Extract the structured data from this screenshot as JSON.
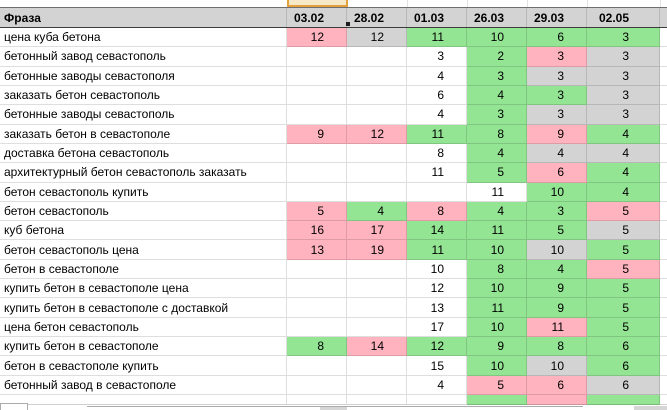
{
  "table": {
    "phrase_header": "Фраза",
    "date_columns": [
      "03.02",
      "28.02",
      "01.03",
      "26.03",
      "29.03",
      "02.05"
    ],
    "rows": [
      {
        "phrase": "цена куба бетона",
        "cells": [
          {
            "v": "12",
            "c": "pink"
          },
          {
            "v": "12",
            "c": "gray"
          },
          {
            "v": "11",
            "c": "green"
          },
          {
            "v": "10",
            "c": "green"
          },
          {
            "v": "6",
            "c": "green"
          },
          {
            "v": "3",
            "c": "green"
          }
        ]
      },
      {
        "phrase": "бетонный завод севастополь",
        "cells": [
          {
            "v": "",
            "c": "none"
          },
          {
            "v": "",
            "c": "none"
          },
          {
            "v": "3",
            "c": "white"
          },
          {
            "v": "2",
            "c": "green"
          },
          {
            "v": "3",
            "c": "pink"
          },
          {
            "v": "3",
            "c": "gray"
          }
        ]
      },
      {
        "phrase": "бетонные заводы севастополя",
        "cells": [
          {
            "v": "",
            "c": "none"
          },
          {
            "v": "",
            "c": "none"
          },
          {
            "v": "4",
            "c": "white"
          },
          {
            "v": "3",
            "c": "green"
          },
          {
            "v": "3",
            "c": "gray"
          },
          {
            "v": "3",
            "c": "gray"
          }
        ]
      },
      {
        "phrase": "заказать бетон севастополь",
        "cells": [
          {
            "v": "",
            "c": "none"
          },
          {
            "v": "",
            "c": "none"
          },
          {
            "v": "6",
            "c": "white"
          },
          {
            "v": "4",
            "c": "green"
          },
          {
            "v": "3",
            "c": "green"
          },
          {
            "v": "3",
            "c": "gray"
          }
        ]
      },
      {
        "phrase": "бетонные заводы севастополь",
        "cells": [
          {
            "v": "",
            "c": "none"
          },
          {
            "v": "",
            "c": "none"
          },
          {
            "v": "4",
            "c": "white"
          },
          {
            "v": "3",
            "c": "green"
          },
          {
            "v": "3",
            "c": "gray"
          },
          {
            "v": "3",
            "c": "gray"
          }
        ]
      },
      {
        "phrase": "заказать бетон в севастополе",
        "cells": [
          {
            "v": "9",
            "c": "pink"
          },
          {
            "v": "12",
            "c": "pink"
          },
          {
            "v": "11",
            "c": "green"
          },
          {
            "v": "8",
            "c": "green"
          },
          {
            "v": "9",
            "c": "pink"
          },
          {
            "v": "4",
            "c": "green"
          }
        ]
      },
      {
        "phrase": "доставка бетона севастополь",
        "cells": [
          {
            "v": "",
            "c": "none"
          },
          {
            "v": "",
            "c": "none"
          },
          {
            "v": "8",
            "c": "white"
          },
          {
            "v": "4",
            "c": "green"
          },
          {
            "v": "4",
            "c": "gray"
          },
          {
            "v": "4",
            "c": "gray"
          }
        ]
      },
      {
        "phrase": "архитектурный бетон севастополь заказать",
        "cells": [
          {
            "v": "",
            "c": "none"
          },
          {
            "v": "",
            "c": "none"
          },
          {
            "v": "11",
            "c": "white"
          },
          {
            "v": "5",
            "c": "green"
          },
          {
            "v": "6",
            "c": "pink"
          },
          {
            "v": "4",
            "c": "green"
          }
        ]
      },
      {
        "phrase": "бетон севастополь купить",
        "cells": [
          {
            "v": "",
            "c": "none"
          },
          {
            "v": "",
            "c": "none"
          },
          {
            "v": "",
            "c": "none"
          },
          {
            "v": "11",
            "c": "white"
          },
          {
            "v": "10",
            "c": "green"
          },
          {
            "v": "4",
            "c": "green"
          }
        ]
      },
      {
        "phrase": "бетон севастополь",
        "cells": [
          {
            "v": "5",
            "c": "pink"
          },
          {
            "v": "4",
            "c": "green"
          },
          {
            "v": "8",
            "c": "pink"
          },
          {
            "v": "4",
            "c": "green"
          },
          {
            "v": "3",
            "c": "green"
          },
          {
            "v": "5",
            "c": "pink"
          }
        ]
      },
      {
        "phrase": "куб бетона",
        "cells": [
          {
            "v": "16",
            "c": "pink"
          },
          {
            "v": "17",
            "c": "pink"
          },
          {
            "v": "14",
            "c": "green"
          },
          {
            "v": "11",
            "c": "green"
          },
          {
            "v": "5",
            "c": "green"
          },
          {
            "v": "5",
            "c": "gray"
          }
        ]
      },
      {
        "phrase": "бетон севастополь цена",
        "cells": [
          {
            "v": "13",
            "c": "pink"
          },
          {
            "v": "19",
            "c": "pink"
          },
          {
            "v": "11",
            "c": "green"
          },
          {
            "v": "10",
            "c": "green"
          },
          {
            "v": "10",
            "c": "gray"
          },
          {
            "v": "5",
            "c": "green"
          }
        ]
      },
      {
        "phrase": "бетон в севастополе",
        "cells": [
          {
            "v": "",
            "c": "none"
          },
          {
            "v": "",
            "c": "none"
          },
          {
            "v": "10",
            "c": "white"
          },
          {
            "v": "8",
            "c": "green"
          },
          {
            "v": "4",
            "c": "green"
          },
          {
            "v": "5",
            "c": "pink"
          }
        ]
      },
      {
        "phrase": "купить бетон в севастополе цена",
        "cells": [
          {
            "v": "",
            "c": "none"
          },
          {
            "v": "",
            "c": "none"
          },
          {
            "v": "12",
            "c": "white"
          },
          {
            "v": "10",
            "c": "green"
          },
          {
            "v": "9",
            "c": "green"
          },
          {
            "v": "5",
            "c": "green"
          }
        ]
      },
      {
        "phrase": "купить бетон в севастополе с доставкой",
        "cells": [
          {
            "v": "",
            "c": "none"
          },
          {
            "v": "",
            "c": "none"
          },
          {
            "v": "13",
            "c": "white"
          },
          {
            "v": "11",
            "c": "green"
          },
          {
            "v": "9",
            "c": "green"
          },
          {
            "v": "5",
            "c": "green"
          }
        ]
      },
      {
        "phrase": "цена бетон севастополь",
        "cells": [
          {
            "v": "",
            "c": "none"
          },
          {
            "v": "",
            "c": "none"
          },
          {
            "v": "17",
            "c": "white"
          },
          {
            "v": "10",
            "c": "green"
          },
          {
            "v": "11",
            "c": "pink"
          },
          {
            "v": "5",
            "c": "green"
          }
        ]
      },
      {
        "phrase": "купить бетон в севастополе",
        "cells": [
          {
            "v": "8",
            "c": "green"
          },
          {
            "v": "14",
            "c": "pink"
          },
          {
            "v": "12",
            "c": "green"
          },
          {
            "v": "9",
            "c": "green"
          },
          {
            "v": "8",
            "c": "green"
          },
          {
            "v": "6",
            "c": "green"
          }
        ]
      },
      {
        "phrase": "бетон в севастополе купить",
        "cells": [
          {
            "v": "",
            "c": "none"
          },
          {
            "v": "",
            "c": "none"
          },
          {
            "v": "15",
            "c": "white"
          },
          {
            "v": "10",
            "c": "green"
          },
          {
            "v": "10",
            "c": "gray"
          },
          {
            "v": "6",
            "c": "green"
          }
        ]
      },
      {
        "phrase": "бетонный завод в севастополе",
        "cells": [
          {
            "v": "",
            "c": "none"
          },
          {
            "v": "",
            "c": "none"
          },
          {
            "v": "4",
            "c": "white"
          },
          {
            "v": "5",
            "c": "pink"
          },
          {
            "v": "6",
            "c": "pink"
          },
          {
            "v": "6",
            "c": "gray"
          }
        ]
      }
    ],
    "partial_row_colors": [
      "none",
      "none",
      "none",
      "green",
      "pink",
      "green"
    ]
  },
  "colors": {
    "green": "#93e493",
    "pink": "#ffb3be",
    "gray": "#d3d3d3",
    "header_bg": "#d3d3d3",
    "selected_cell_fill": "#f7e8c8",
    "selected_cell_border": "#e2a13c"
  }
}
